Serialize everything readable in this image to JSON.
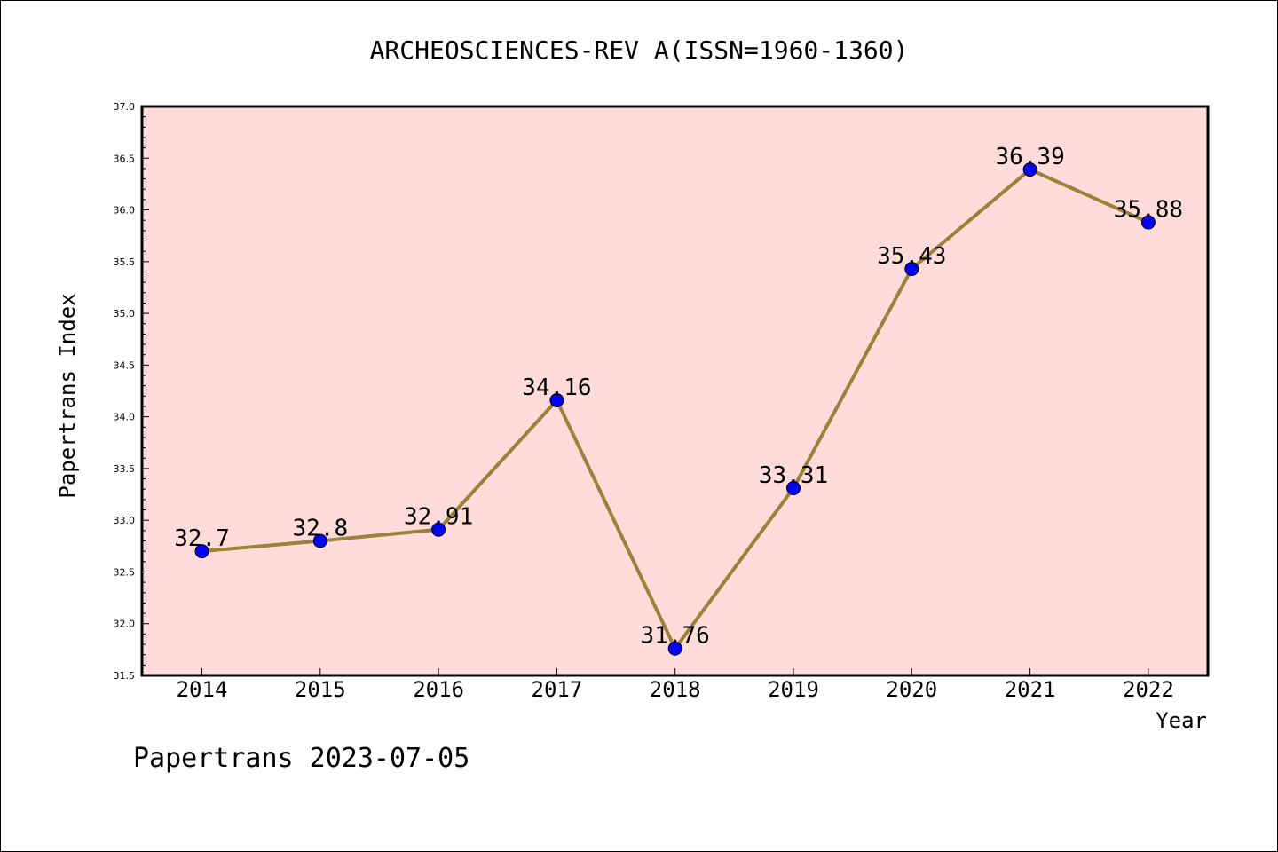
{
  "chart_data": {
    "type": "line",
    "title": "ARCHEOSCIENCES-REV A(ISSN=1960-1360)",
    "xlabel": "Year",
    "ylabel": "Papertrans Index",
    "categories": [
      "2014",
      "2015",
      "2016",
      "2017",
      "2018",
      "2019",
      "2020",
      "2021",
      "2022"
    ],
    "series": [
      {
        "values": [
          32.7,
          32.8,
          32.91,
          34.16,
          31.76,
          33.31,
          35.43,
          36.39,
          35.88
        ],
        "labels": [
          "32.7",
          "32.8",
          "32.91",
          "34.16",
          "31.76",
          "33.31",
          "35.43",
          "36.39",
          "35.88"
        ],
        "line_color": "#9b8238",
        "marker_color": "#0000ff"
      }
    ],
    "ylim": [
      31.5,
      37.0
    ],
    "yticks": [
      "31.5",
      "32.0",
      "32.5",
      "33.0",
      "33.5",
      "34.0",
      "34.5",
      "35.0",
      "35.5",
      "36.0",
      "36.5",
      "37.0"
    ],
    "plot_background": "#ffdcda",
    "grid": false,
    "legend": "none"
  },
  "footer": "Papertrans 2023-07-05"
}
